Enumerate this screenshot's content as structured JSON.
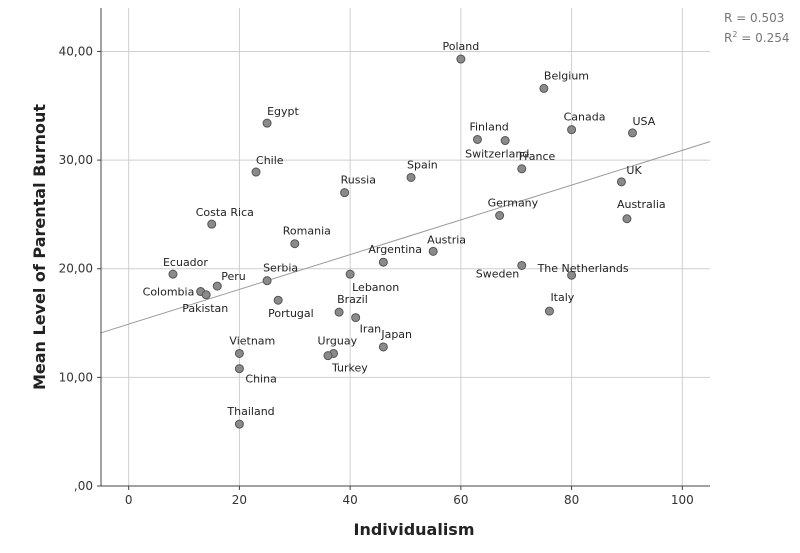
{
  "chart_data": {
    "type": "scatter",
    "xlabel": "Individualism",
    "ylabel": "Mean Level of Parental Burnout",
    "xlim": [
      -5,
      105
    ],
    "ylim": [
      0,
      44
    ],
    "xticks": [
      0,
      20,
      40,
      60,
      80,
      100
    ],
    "xtick_labels": [
      "0",
      "20",
      "40",
      "60",
      "80",
      "100"
    ],
    "yticks": [
      0,
      10,
      20,
      30,
      40
    ],
    "ytick_labels": [
      ",00",
      "10,00",
      "20,00",
      "30,00",
      "40,00"
    ],
    "grid": true,
    "stats": {
      "r": "R = 0.503",
      "r2_prefix": "R",
      "r2_sup": "2",
      "r2_suffix": " = 0.254"
    },
    "fit_line": {
      "x": [
        -5,
        105
      ],
      "y": [
        14.1,
        31.7
      ]
    },
    "points": [
      {
        "label": "Poland",
        "x": 60,
        "y": 39.3
      },
      {
        "label": "Belgium",
        "x": 75,
        "y": 36.6
      },
      {
        "label": "Egypt",
        "x": 25,
        "y": 33.4
      },
      {
        "label": "Canada",
        "x": 80,
        "y": 32.8
      },
      {
        "label": "USA",
        "x": 91,
        "y": 32.5
      },
      {
        "label": "Finland",
        "x": 63,
        "y": 31.9
      },
      {
        "label": "Switzerland",
        "x": 68,
        "y": 31.8
      },
      {
        "label": "Chile",
        "x": 23,
        "y": 28.9
      },
      {
        "label": "France",
        "x": 71,
        "y": 29.2
      },
      {
        "label": "UK",
        "x": 89,
        "y": 28.0
      },
      {
        "label": "Spain",
        "x": 51,
        "y": 28.4
      },
      {
        "label": "Russia",
        "x": 39,
        "y": 27.0
      },
      {
        "label": "Costa Rica",
        "x": 15,
        "y": 24.1
      },
      {
        "label": "Germany",
        "x": 67,
        "y": 24.9
      },
      {
        "label": "Australia",
        "x": 90,
        "y": 24.6
      },
      {
        "label": "Romania",
        "x": 30,
        "y": 22.3
      },
      {
        "label": "Austria",
        "x": 55,
        "y": 21.6
      },
      {
        "label": "Argentina",
        "x": 46,
        "y": 20.6
      },
      {
        "label": "Sweden",
        "x": 71,
        "y": 20.3
      },
      {
        "label": "The Netherlands",
        "x": 80,
        "y": 19.4
      },
      {
        "label": "Ecuador",
        "x": 8,
        "y": 19.5
      },
      {
        "label": "Lebanon",
        "x": 40,
        "y": 19.5
      },
      {
        "label": "Serbia",
        "x": 25,
        "y": 18.9
      },
      {
        "label": "Peru",
        "x": 16,
        "y": 18.4
      },
      {
        "label": "Colombia",
        "x": 13,
        "y": 17.9
      },
      {
        "label": "Pakistan",
        "x": 14,
        "y": 17.6
      },
      {
        "label": "Portugal",
        "x": 27,
        "y": 17.1
      },
      {
        "label": "Brazil",
        "x": 38,
        "y": 16.0
      },
      {
        "label": "Italy",
        "x": 76,
        "y": 16.1
      },
      {
        "label": "Iran",
        "x": 41,
        "y": 15.5
      },
      {
        "label": "Japan",
        "x": 46,
        "y": 12.8
      },
      {
        "label": "Vietnam",
        "x": 20,
        "y": 12.2
      },
      {
        "label": "Urguay",
        "x": 37,
        "y": 12.2
      },
      {
        "label": "Turkey",
        "x": 36,
        "y": 12.0
      },
      {
        "label": "China",
        "x": 20,
        "y": 10.8
      },
      {
        "label": "Thailand",
        "x": 20,
        "y": 5.7
      }
    ]
  }
}
